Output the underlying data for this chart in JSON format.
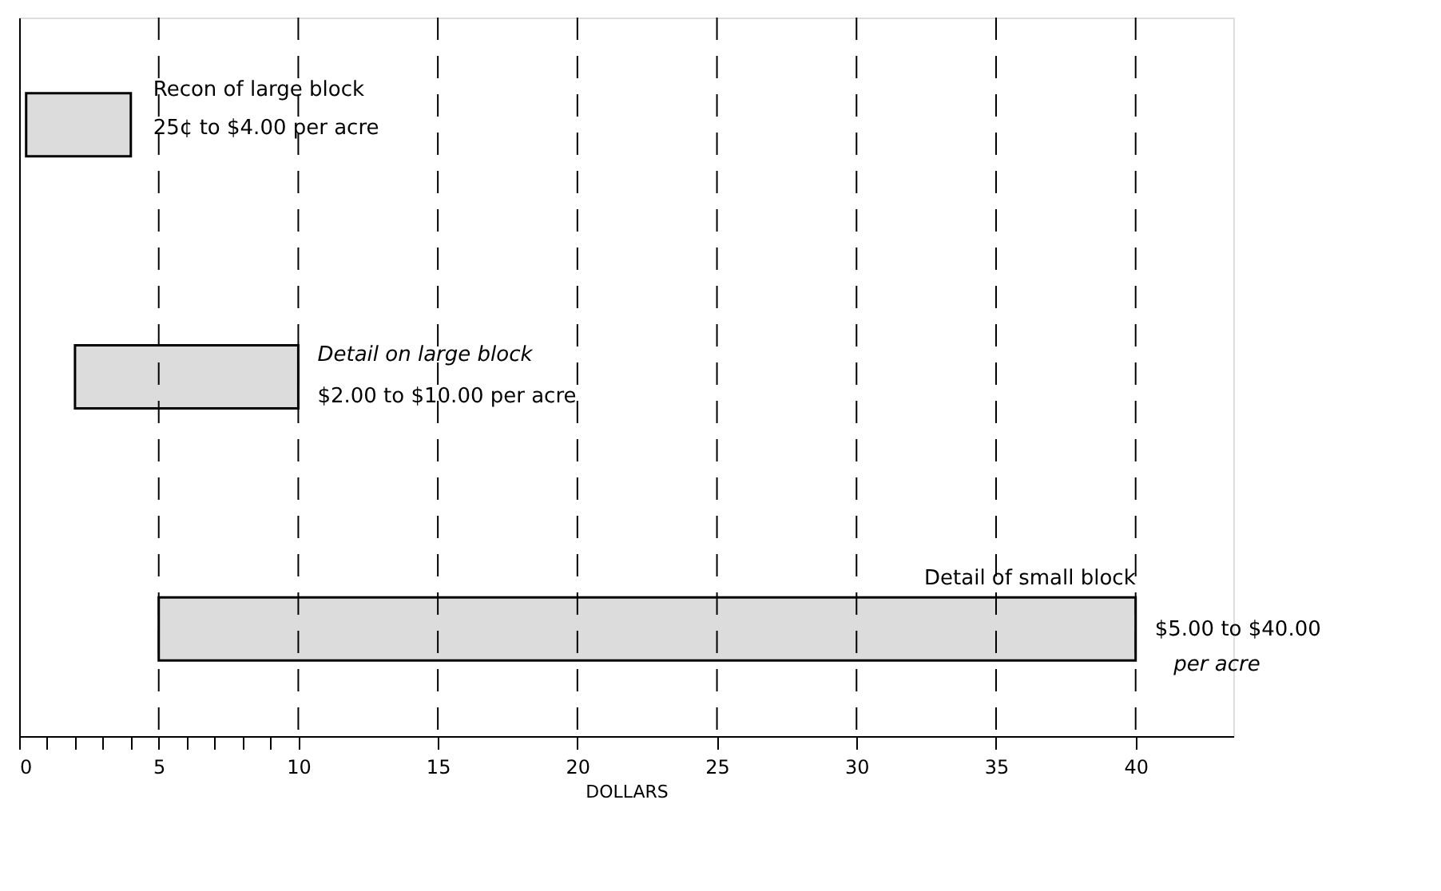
{
  "chart_data": {
    "type": "bar",
    "orientation": "horizontal",
    "xlabel": "DOLLARS",
    "categories": [
      null,
      null,
      null
    ],
    "base": [
      0.25,
      2,
      5
    ],
    "values": [
      3.75,
      8,
      35
    ],
    "color": "#dcdcdc",
    "xlim": [
      0,
      43.5
    ],
    "xticks": [
      0,
      {
        "value": 1,
        "label": null
      },
      {
        "value": 2,
        "label": null
      },
      {
        "value": 3,
        "label": null
      },
      {
        "value": 4,
        "label": null
      },
      5,
      {
        "value": 6,
        "label": null
      },
      {
        "value": 7,
        "label": null
      },
      {
        "value": 8,
        "label": null
      },
      {
        "value": 9,
        "label": null
      },
      10,
      15,
      20,
      25,
      30,
      35,
      40
    ],
    "grid": "x",
    "annotations": [
      "Recon of large block",
      "25¢ to $4.00 per acre",
      "Detail on large block",
      "$2.00 to $10.00 per acre",
      "Detail of small block",
      "$5.00 to $40.00",
      "per acre"
    ]
  }
}
